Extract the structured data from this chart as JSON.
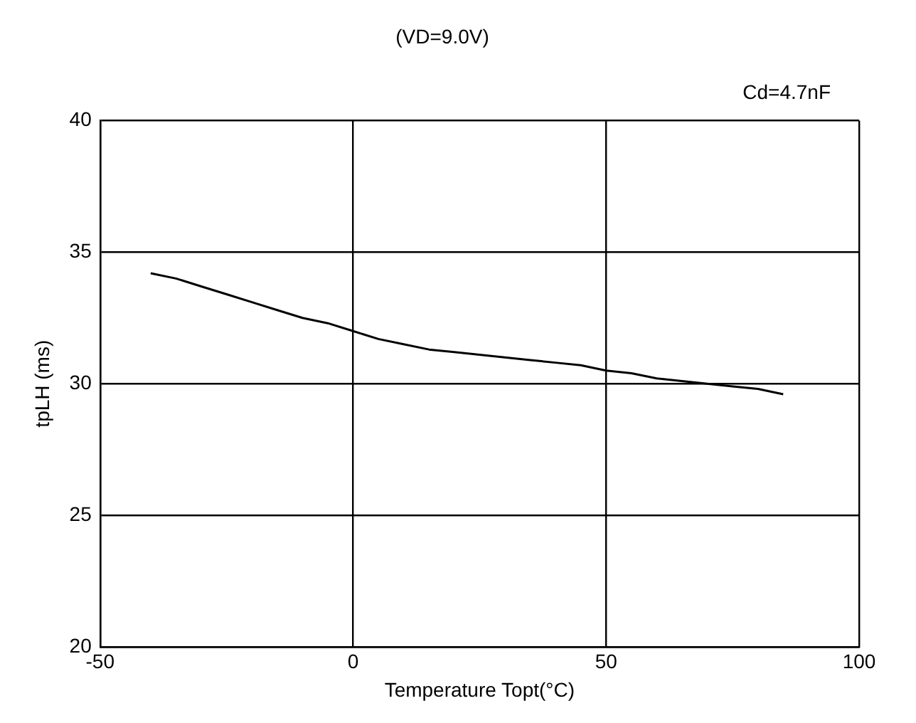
{
  "chart_data": {
    "type": "line",
    "title": "(VD=9.0V)",
    "xlabel": "Temperature Topt(°C)",
    "ylabel": "tpLH (ms)",
    "annotations": [
      "Cd=4.7nF"
    ],
    "x": [
      -40,
      -35,
      -30,
      -25,
      -20,
      -15,
      -10,
      -5,
      0,
      5,
      10,
      15,
      20,
      25,
      30,
      35,
      40,
      45,
      50,
      55,
      60,
      65,
      70,
      75,
      80,
      85
    ],
    "series": [
      {
        "color": "#000000",
        "values": [
          34.2,
          34.0,
          33.7,
          33.4,
          33.1,
          32.8,
          32.5,
          32.3,
          32.0,
          31.7,
          31.5,
          31.3,
          31.2,
          31.1,
          31.0,
          30.9,
          30.8,
          30.7,
          30.5,
          30.4,
          30.2,
          30.1,
          30.0,
          29.9,
          29.8,
          29.6
        ]
      }
    ],
    "xlim": [
      -50,
      100
    ],
    "xticks": [
      -50,
      0,
      50,
      100
    ],
    "ylim": [
      20,
      40
    ],
    "yticks": [
      20,
      25,
      30,
      35,
      40
    ],
    "grid": true,
    "legend": false,
    "marker": "none",
    "line_style": "solid"
  }
}
